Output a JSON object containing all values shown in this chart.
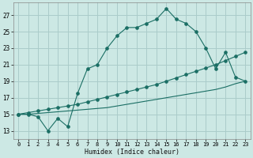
{
  "xlabel": "Humidex (Indice chaleur)",
  "background_color": "#cce8e4",
  "grid_color": "#aaccca",
  "line_color": "#1a6e64",
  "xlim": [
    -0.5,
    23.5
  ],
  "ylim": [
    12,
    28.5
  ],
  "xticks": [
    0,
    1,
    2,
    3,
    4,
    5,
    6,
    7,
    8,
    9,
    10,
    11,
    12,
    13,
    14,
    15,
    16,
    17,
    18,
    19,
    20,
    21,
    22,
    23
  ],
  "yticks": [
    13,
    15,
    17,
    19,
    21,
    23,
    25,
    27
  ],
  "series1_x": [
    0,
    1,
    2,
    3,
    4,
    5,
    6,
    7,
    8,
    9,
    10,
    11,
    12,
    13,
    14,
    15,
    16,
    17,
    18,
    19,
    20,
    21,
    22,
    23
  ],
  "series1_y": [
    15.0,
    15.0,
    14.7,
    13.0,
    14.5,
    13.5,
    17.5,
    20.5,
    21.0,
    23.0,
    24.5,
    25.5,
    25.5,
    26.0,
    26.5,
    27.8,
    26.5,
    26.0,
    25.0,
    23.0,
    20.5,
    22.5,
    19.5,
    19.0
  ],
  "series2_x": [
    0,
    1,
    2,
    3,
    4,
    5,
    6,
    7,
    8,
    9,
    10,
    11,
    12,
    13,
    14,
    15,
    16,
    17,
    18,
    19,
    20,
    21,
    22,
    23
  ],
  "series2_y": [
    15.0,
    15.2,
    15.4,
    15.6,
    15.8,
    16.0,
    16.2,
    16.5,
    16.8,
    17.1,
    17.4,
    17.7,
    18.0,
    18.3,
    18.6,
    19.0,
    19.4,
    19.8,
    20.2,
    20.6,
    21.0,
    21.5,
    22.0,
    22.5
  ],
  "series3_x": [
    0,
    1,
    2,
    3,
    4,
    5,
    6,
    7,
    8,
    9,
    10,
    11,
    12,
    13,
    14,
    15,
    16,
    17,
    18,
    19,
    20,
    21,
    22,
    23
  ],
  "series3_y": [
    15.0,
    15.0,
    15.1,
    15.2,
    15.3,
    15.4,
    15.5,
    15.6,
    15.7,
    15.8,
    16.0,
    16.2,
    16.4,
    16.6,
    16.8,
    17.0,
    17.2,
    17.4,
    17.6,
    17.8,
    18.0,
    18.3,
    18.7,
    19.0
  ]
}
